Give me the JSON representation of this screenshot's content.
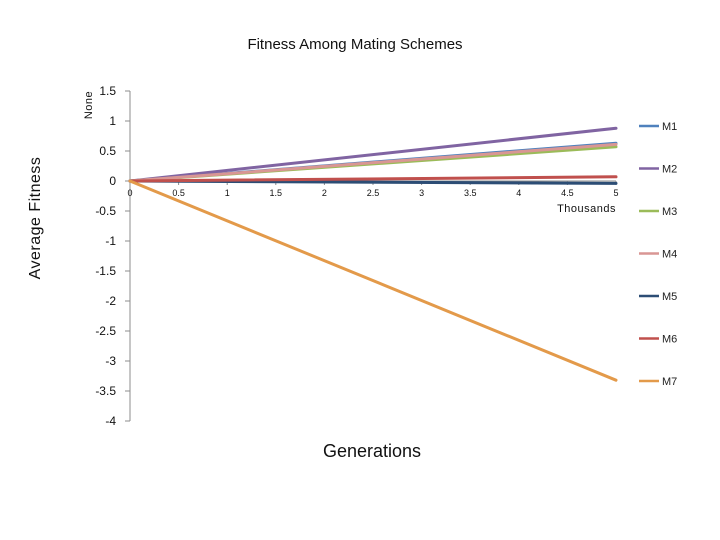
{
  "chart_data": {
    "type": "line",
    "title": "Fitness  Among  Mating  Schemes",
    "ylabel": "Average  Fitness",
    "y_units_label": "None",
    "xlabel": "Generations",
    "x_multiplier_label": "Thousands",
    "xlim": [
      0,
      5
    ],
    "ylim": [
      -4,
      1.5
    ],
    "x_ticks": [
      0,
      0.5,
      1,
      1.5,
      2,
      2.5,
      3,
      3.5,
      4,
      4.5,
      5
    ],
    "x_tick_labels": [
      "0",
      "0.5",
      "1",
      "1.5",
      "2",
      "2.5",
      "3",
      "3.5",
      "4",
      "4.5",
      "5"
    ],
    "y_ticks": [
      1.5,
      1,
      0.5,
      0,
      -0.5,
      -1,
      -1.5,
      -2,
      -2.5,
      -3,
      -3.5,
      -4
    ],
    "y_tick_labels": [
      "1.5",
      "1",
      "0.5",
      "0",
      "-0.5",
      "-1",
      "-1.5",
      "-2",
      "-2.5",
      "-3",
      "-3.5",
      "-4"
    ],
    "grid": false,
    "legend_position": "right",
    "x": [
      0,
      5
    ],
    "series": [
      {
        "name": "M1",
        "color": "#4f81bd",
        "values": [
          0,
          0.63
        ]
      },
      {
        "name": "M2",
        "color": "#8064a2",
        "values": [
          0,
          0.88
        ]
      },
      {
        "name": "M3",
        "color": "#9bbb59",
        "values": [
          0,
          0.57
        ]
      },
      {
        "name": "M4",
        "color": "#d99694",
        "values": [
          0,
          0.61
        ]
      },
      {
        "name": "M5",
        "color": "#2c4d75",
        "values": [
          0,
          -0.04
        ]
      },
      {
        "name": "M6",
        "color": "#c0504d",
        "values": [
          0,
          0.07
        ]
      },
      {
        "name": "M7",
        "color": "#e39a4a",
        "values": [
          0,
          -3.32
        ]
      }
    ]
  }
}
